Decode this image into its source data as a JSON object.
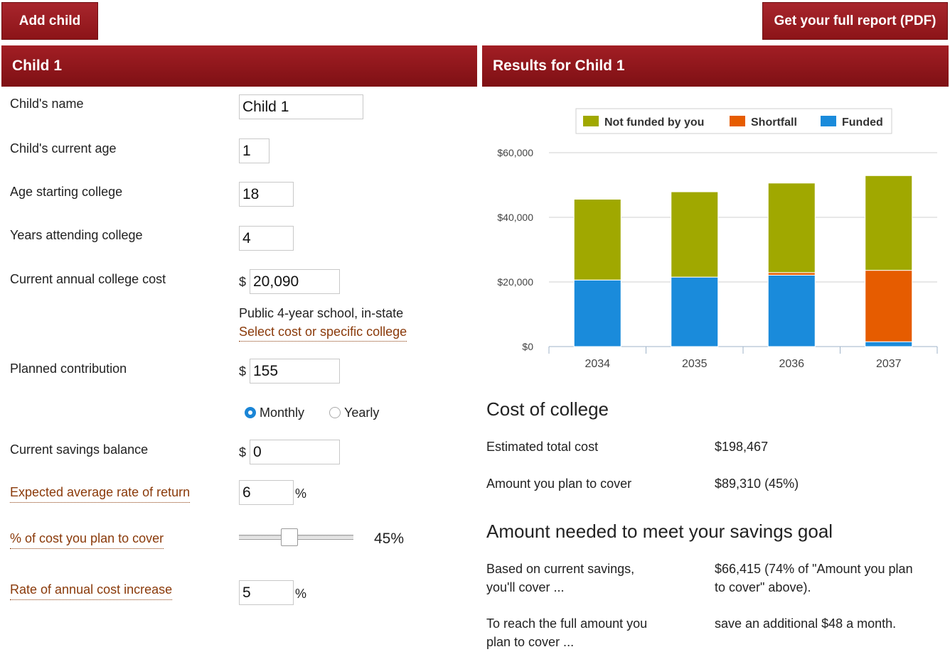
{
  "top_buttons": {
    "add_child": "Add child",
    "report": "Get your full report (PDF)"
  },
  "left_panel": {
    "title": "Child 1",
    "name_label": "Child's name",
    "name_value": "Child 1",
    "age_label": "Child's current age",
    "age_value": "1",
    "start_label": "Age starting college",
    "start_value": "18",
    "years_label": "Years attending college",
    "years_value": "4",
    "cost_label": "Current annual college cost",
    "cost_value": "20,090",
    "currency": "$",
    "school_type": "Public 4-year school, in-state",
    "select_link": "Select cost or specific college",
    "contrib_label": "Planned contribution",
    "contrib_value": "155",
    "freq_monthly": "Monthly",
    "freq_yearly": "Yearly",
    "freq_selected": "Monthly",
    "savings_label": "Current savings balance",
    "savings_value": "0",
    "return_label": "Expected average rate of return",
    "return_value": "6",
    "percent_sign": "%",
    "cover_label": "% of cost you plan to cover",
    "cover_value": "45%",
    "cover_fraction": 0.45,
    "increase_label": "Rate of annual cost increase",
    "increase_value": "5"
  },
  "right_panel": {
    "title": "Results for Child 1",
    "cost_heading": "Cost of college",
    "est_label": "Estimated total cost",
    "est_value": "$198,467",
    "plan_label": "Amount you plan to cover",
    "plan_value": "$89,310 (45%)",
    "goal_heading": "Amount needed to meet your savings goal",
    "based_label_1": "Based on current savings,",
    "based_label_2": "you'll cover ...",
    "based_value_1": "$66,415 (74% of \"Amount you plan",
    "based_value_2": "to cover\" above).",
    "reach_label_1": "To reach the full amount you",
    "reach_label_2": "plan to cover ...",
    "reach_value": "save an additional $48 a month."
  },
  "chart_data": {
    "type": "bar",
    "stacked": true,
    "categories": [
      "2034",
      "2035",
      "2036",
      "2037"
    ],
    "series": [
      {
        "name": "Funded",
        "color": "#1a8bdb",
        "values": [
          20600,
          21500,
          22100,
          1500
        ]
      },
      {
        "name": "Shortfall",
        "color": "#e65c00",
        "values": [
          0,
          0,
          800,
          22100
        ]
      },
      {
        "name": "Not funded by you",
        "color": "#a0a800",
        "values": [
          25000,
          26400,
          27700,
          29300
        ]
      }
    ],
    "legend_order": [
      "Not funded by you",
      "Shortfall",
      "Funded"
    ],
    "legend_position": "top",
    "ylim": [
      0,
      60000
    ],
    "yticks": [
      0,
      20000,
      40000,
      60000
    ],
    "ytick_labels": [
      "$0",
      "$20,000",
      "$40,000",
      "$60,000"
    ],
    "grid": true
  }
}
